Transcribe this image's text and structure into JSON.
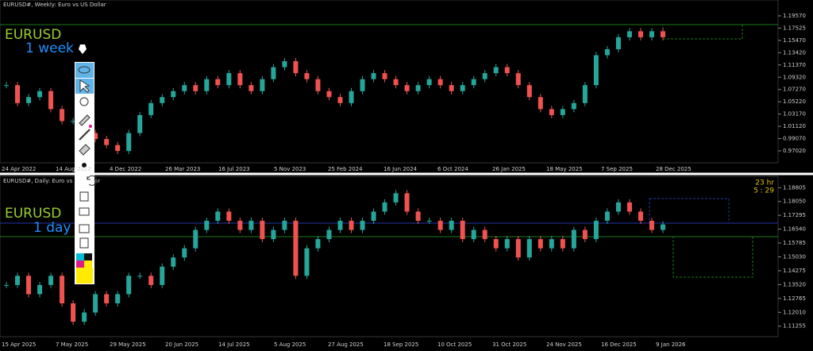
{
  "weekly_panel": {
    "title": "EURUSD#, Weekly:  Euro vs US Dollar",
    "symbol_label": "EURUSD",
    "timeframe_label": "1 week",
    "ylim": [
      0.9503,
      1.2222
    ],
    "yticks": [
      {
        "value": 1.1957,
        "label": "1.19570"
      },
      {
        "value": 1.17525,
        "label": "1.17525"
      },
      {
        "value": 1.1547,
        "label": "1.15470"
      },
      {
        "value": 1.1342,
        "label": "1.13420"
      },
      {
        "value": 1.1137,
        "label": "1.11370"
      },
      {
        "value": 1.0932,
        "label": "1.09320"
      },
      {
        "value": 1.0727,
        "label": "1.07270"
      },
      {
        "value": 1.0522,
        "label": "1.05220"
      },
      {
        "value": 1.0317,
        "label": "1.03170"
      },
      {
        "value": 1.0112,
        "label": "1.01120"
      },
      {
        "value": 0.9907,
        "label": "0.99070"
      },
      {
        "value": 0.9702,
        "label": "0.97020"
      }
    ],
    "xlabels": [
      "24 Apr 2022",
      "14 Aug 2022",
      "4 Dec 2022",
      "26 Mar 2023",
      "16 Jul 2023",
      "5 Nov 2023",
      "25 Feb 2024",
      "16 Jun 2024",
      "6 Oct 2024",
      "26 Jan 2025",
      "18 May 2025",
      "7 Sep 2025",
      "28 Dec 2025"
    ],
    "closes": [
      1.08,
      1.05,
      1.06,
      1.07,
      1.04,
      1.02,
      1.02,
      1.0,
      0.99,
      0.98,
      0.97,
      1.0,
      1.03,
      1.05,
      1.06,
      1.07,
      1.08,
      1.07,
      1.09,
      1.08,
      1.1,
      1.08,
      1.07,
      1.09,
      1.11,
      1.12,
      1.1,
      1.09,
      1.07,
      1.06,
      1.05,
      1.07,
      1.09,
      1.1,
      1.09,
      1.08,
      1.07,
      1.08,
      1.09,
      1.08,
      1.07,
      1.08,
      1.09,
      1.1,
      1.11,
      1.1,
      1.08,
      1.06,
      1.04,
      1.03,
      1.04,
      1.05,
      1.08,
      1.13,
      1.14,
      1.16,
      1.17,
      1.16,
      1.17,
      1.16
    ]
  },
  "daily_panel": {
    "title": "EURUSD#, Daily:  Euro vs US Dollar",
    "symbol_label": "EURUSD",
    "timeframe_label": "1 day",
    "timer": [
      "23 hr",
      "5 : 29"
    ],
    "ylim": [
      1.10681,
      1.19423
    ],
    "yticks": [
      {
        "value": 1.18805,
        "label": "1.18805"
      },
      {
        "value": 1.1805,
        "label": "1.18050"
      },
      {
        "value": 1.17295,
        "label": "1.17295"
      },
      {
        "value": 1.1654,
        "label": "1.16540"
      },
      {
        "value": 1.15785,
        "label": "1.15785"
      },
      {
        "value": 1.1503,
        "label": "1.15030"
      },
      {
        "value": 1.14275,
        "label": "1.14275"
      },
      {
        "value": 1.1352,
        "label": "1.13520"
      },
      {
        "value": 1.12765,
        "label": "1.12765"
      },
      {
        "value": 1.1201,
        "label": "1.12010"
      },
      {
        "value": 1.11255,
        "label": "1.11255"
      }
    ],
    "xlabels": [
      "15 Apr 2025",
      "7 May 2025",
      "29 May 2025",
      "20 Jun 2025",
      "14 Jul 2025",
      "5 Aug 2025",
      "27 Aug 2025",
      "18 Sep 2025",
      "10 Oct 2025",
      "31 Oct 2025",
      "24 Nov 2025",
      "16 Dec 2025",
      "9 Jan 2026"
    ],
    "closes": [
      1.135,
      1.14,
      1.13,
      1.135,
      1.14,
      1.125,
      1.115,
      1.12,
      1.13,
      1.125,
      1.13,
      1.14,
      1.14,
      1.135,
      1.145,
      1.15,
      1.155,
      1.165,
      1.17,
      1.175,
      1.17,
      1.165,
      1.17,
      1.16,
      1.165,
      1.17,
      1.14,
      1.155,
      1.16,
      1.165,
      1.17,
      1.165,
      1.17,
      1.175,
      1.18,
      1.185,
      1.175,
      1.17,
      1.17,
      1.165,
      1.17,
      1.16,
      1.165,
      1.16,
      1.155,
      1.16,
      1.15,
      1.16,
      1.155,
      1.16,
      1.155,
      1.165,
      1.16,
      1.17,
      1.175,
      1.18,
      1.175,
      1.17,
      1.165,
      1.168
    ]
  }
}
